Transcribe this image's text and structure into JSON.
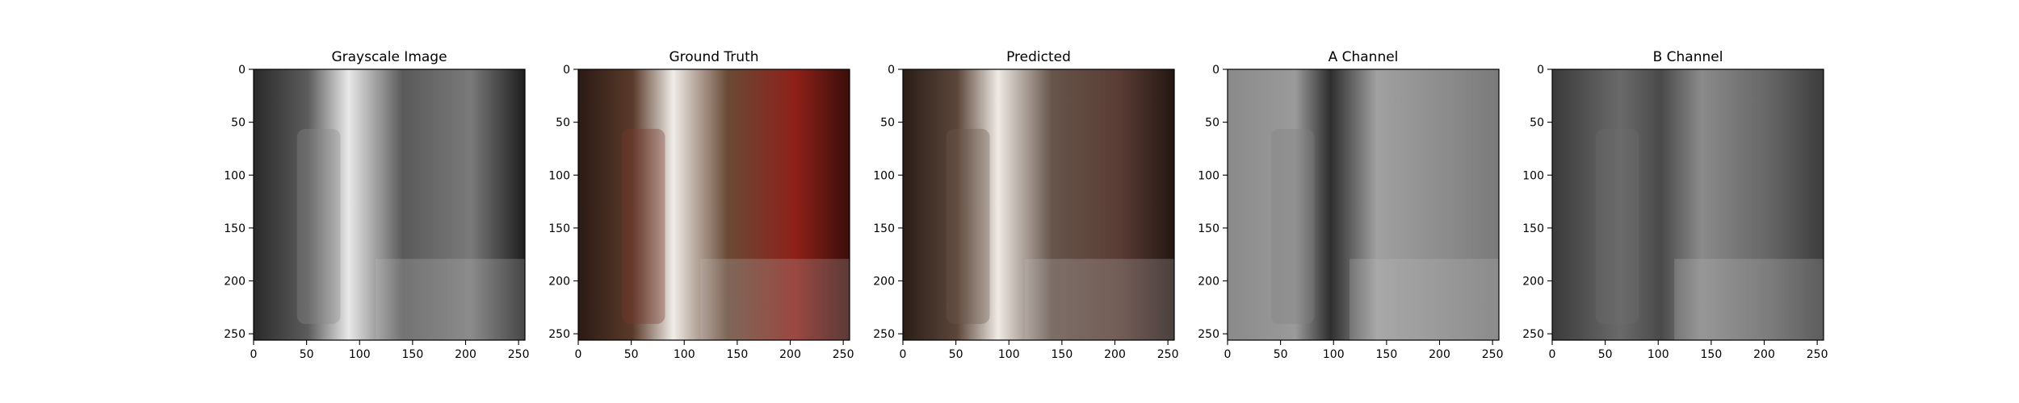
{
  "chart_data": [
    {
      "type": "image",
      "title": "Grayscale Image",
      "xticks": [
        0,
        50,
        100,
        150,
        200,
        250
      ],
      "yticks": [
        0,
        50,
        100,
        150,
        200,
        250
      ],
      "xlim": [
        0,
        256
      ],
      "ylim": [
        256,
        0
      ],
      "colormap": "grayscale",
      "tint": "#8a8a8a"
    },
    {
      "type": "image",
      "title": "Ground Truth",
      "xticks": [
        0,
        50,
        100,
        150,
        200,
        250
      ],
      "yticks": [
        0,
        50,
        100,
        150,
        200,
        250
      ],
      "xlim": [
        0,
        256
      ],
      "ylim": [
        256,
        0
      ],
      "colormap": "color",
      "tint": "#7a3a2e"
    },
    {
      "type": "image",
      "title": "Predicted",
      "xticks": [
        0,
        50,
        100,
        150,
        200,
        250
      ],
      "yticks": [
        0,
        50,
        100,
        150,
        200,
        250
      ],
      "xlim": [
        0,
        256
      ],
      "ylim": [
        256,
        0
      ],
      "colormap": "color",
      "tint": "#6e5a4e"
    },
    {
      "type": "image",
      "title": "A Channel",
      "xticks": [
        0,
        50,
        100,
        150,
        200,
        250
      ],
      "yticks": [
        0,
        50,
        100,
        150,
        200,
        250
      ],
      "xlim": [
        0,
        256
      ],
      "ylim": [
        256,
        0
      ],
      "colormap": "grayscale",
      "tint": "#808080"
    },
    {
      "type": "image",
      "title": "B Channel",
      "xticks": [
        0,
        50,
        100,
        150,
        200,
        250
      ],
      "yticks": [
        0,
        50,
        100,
        150,
        200,
        250
      ],
      "xlim": [
        0,
        256
      ],
      "ylim": [
        256,
        0
      ],
      "colormap": "grayscale",
      "tint": "#6e6e6e"
    }
  ]
}
